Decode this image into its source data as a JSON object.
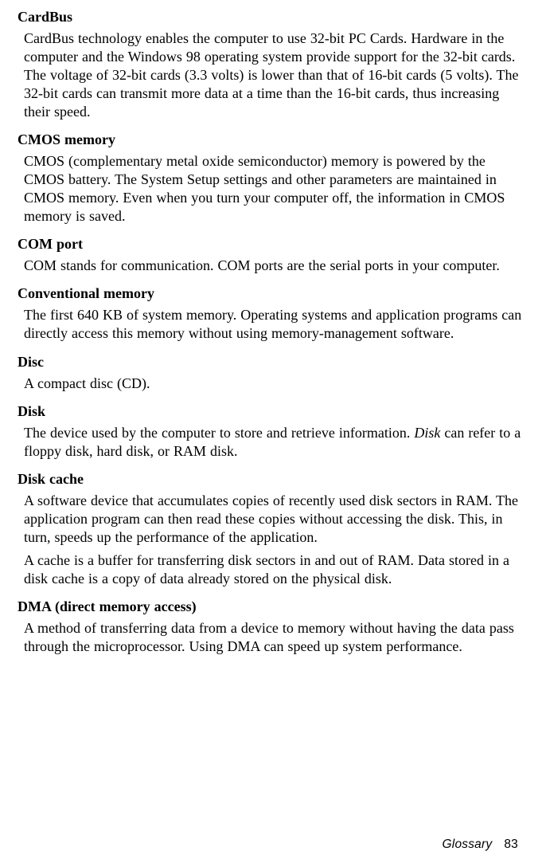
{
  "entries": [
    {
      "term": "CardBus",
      "defs": [
        "CardBus technology enables the computer to use 32-bit PC Cards. Hardware in the computer and the Windows 98 operating system provide support for the 32-bit cards. The voltage of 32-bit cards (3.3 volts) is lower than that of 16-bit cards (5 volts). The 32-bit cards can transmit more data at a time than the 16-bit cards, thus increasing their speed."
      ]
    },
    {
      "term": "CMOS memory",
      "defs": [
        "CMOS (complementary metal oxide semiconductor) memory is powered by the CMOS battery. The System Setup settings and other parameters are maintained in CMOS memory. Even when you turn your computer off, the information in CMOS memory is saved."
      ]
    },
    {
      "term": "COM port",
      "defs": [
        "COM stands for communication. COM ports are the serial ports in your computer."
      ]
    },
    {
      "term": "Conventional memory",
      "defs": [
        "The first 640 KB of system memory. Operating systems and application programs can directly access this memory without using memory-management software."
      ]
    },
    {
      "term": "Disc",
      "defs": [
        "A compact disc (CD)."
      ]
    },
    {
      "term": "Disk",
      "defs": [
        "The device used by the computer to store and retrieve information. <span class=\"italic\">Disk</span> can refer to a floppy disk, hard disk, or RAM disk."
      ],
      "html": true
    },
    {
      "term": "Disk cache",
      "defs": [
        "A software device that accumulates copies of recently used disk sectors in RAM. The application program can then read these copies without accessing the disk. This, in turn, speeds up the performance of the application.",
        "A cache is a buffer for transferring disk sectors in and out of RAM. Data stored in a disk cache is a copy of data already stored on the physical disk."
      ]
    },
    {
      "term": "DMA (direct memory access)",
      "defs": [
        "A method of transferring data from a device to memory without having the data pass through the microprocessor. Using DMA can speed up system performance."
      ]
    }
  ],
  "footer": {
    "label": "Glossary",
    "page": "83"
  }
}
